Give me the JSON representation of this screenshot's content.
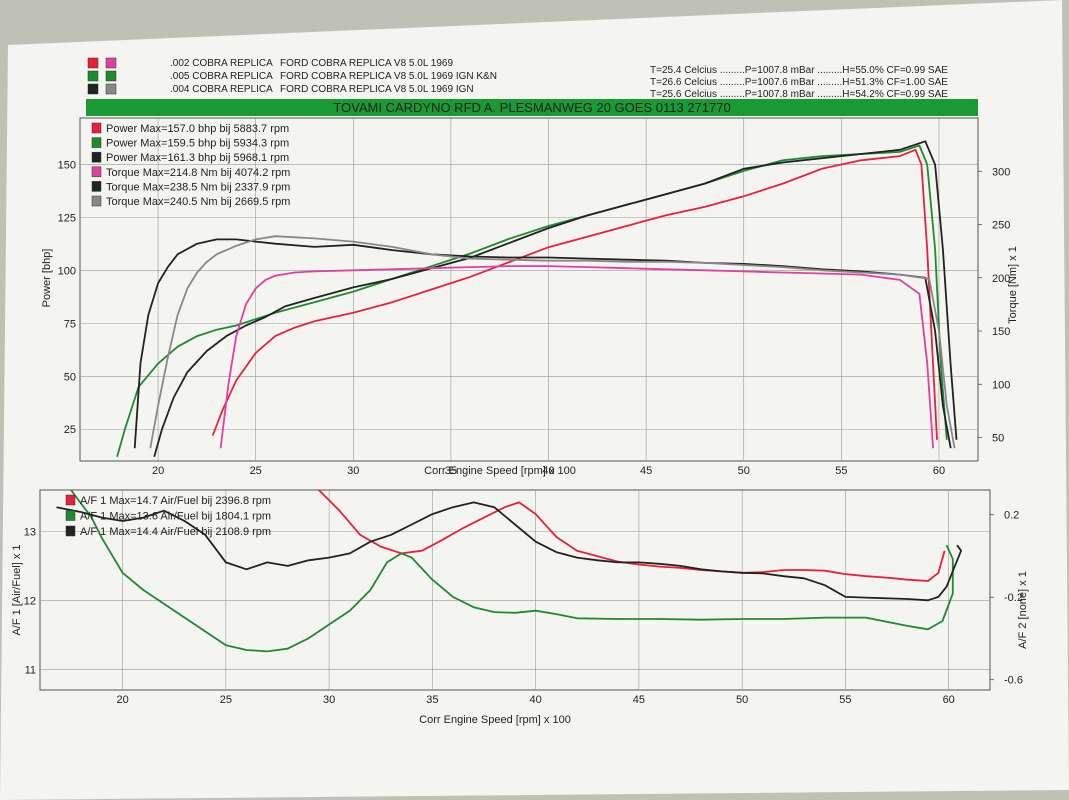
{
  "header": {
    "runs": [
      {
        "swatch": "#e8203a",
        "swatch2": "#e040a0",
        "id": ".002 COBRA REPLICA",
        "desc": "FORD COBRA REPLICA V8 5.0L 1969",
        "cond": "T=25.4 Celcius .........P=1007.8 mBar .........H=55.0% CF=0.99 SAE"
      },
      {
        "swatch": "#1f8a2e",
        "swatch2": "#1f8a2e",
        "id": ".005 COBRA REPLICA",
        "desc": "FORD COBRA REPLICA V8 5.0L 1969 IGN K&N",
        "cond": "T=26.6 Celcius .........P=1007.6 mBar .........H=51.3% CF=1.00 SAE"
      },
      {
        "swatch": "#222222",
        "swatch2": "#888888",
        "id": ".004 COBRA REPLICA",
        "desc": "FORD COBRA REPLICA V8 5.0L 1969 IGN",
        "cond": "T=25.6 Celcius .........P=1007.8 mBar .........H=54.2% CF=0.99 SAE"
      }
    ],
    "banner": "TOVAMI CARDYNO RFD  A. PLESMANWEG 20 GOES 0113 271770",
    "banner_color": "#1a9a35"
  },
  "chart_data": [
    {
      "type": "line",
      "xlabel": "Corr Engine Speed [rpm] x 100",
      "ylabel": "Power [bhp]",
      "y2label": "Torque [Nm] x 1",
      "xlim": [
        16,
        62
      ],
      "ylim": [
        10,
        172
      ],
      "y2lim": [
        28,
        350
      ],
      "xticks": [
        20,
        25,
        30,
        35,
        40,
        45,
        50,
        55,
        60
      ],
      "yticks": [
        25,
        50,
        75,
        100,
        125,
        150
      ],
      "y2ticks": [
        50,
        100,
        150,
        200,
        250,
        300
      ],
      "legend": [
        {
          "text": "Power Max=157.0 bhp bij 5883.7 rpm",
          "color": "#e8203a"
        },
        {
          "text": "Power Max=159.5 bhp bij 5934.3 rpm",
          "color": "#1f8a2e"
        },
        {
          "text": "Power Max=161.3 bhp bij 5968.1 rpm",
          "color": "#222222"
        },
        {
          "text": "Torque Max=214.8 Nm bij 4074.2 rpm",
          "color": "#e040a0"
        },
        {
          "text": "Torque Max=238.5 Nm bij 2337.9 rpm",
          "color": "#222222"
        },
        {
          "text": "Torque Max=240.5 Nm bij 2669.5 rpm",
          "color": "#888888"
        }
      ],
      "series": [
        {
          "kind": "power",
          "axis": "left",
          "color": "#e8203a",
          "x": [
            22.8,
            23.3,
            24,
            25,
            26,
            27,
            28,
            30,
            32,
            34,
            36,
            38,
            40,
            42,
            44,
            46,
            48,
            50,
            52,
            54,
            56,
            58,
            58.8,
            59.1,
            59.4,
            59.7,
            59.9
          ],
          "y": [
            22,
            34,
            48,
            61,
            69,
            73,
            76,
            80,
            85,
            91,
            97,
            104,
            111,
            116,
            121,
            126,
            130,
            135,
            141,
            148,
            152,
            154,
            157,
            150,
            110,
            55,
            20
          ]
        },
        {
          "kind": "power",
          "axis": "left",
          "color": "#1f8a2e",
          "x": [
            17.9,
            18.3,
            19,
            20,
            21,
            22,
            23,
            24,
            25,
            26,
            28,
            30,
            32,
            34,
            36,
            38,
            40,
            42,
            44,
            46,
            48,
            50,
            52,
            54,
            56,
            58,
            59,
            59.4,
            59.8,
            60.1,
            60.4
          ],
          "y": [
            12,
            25,
            45,
            56,
            64,
            69,
            72,
            74,
            77,
            80,
            85,
            90,
            96,
            102,
            108,
            115,
            121,
            126,
            131,
            136,
            141,
            147,
            152,
            154,
            155,
            156,
            159,
            150,
            110,
            55,
            20
          ]
        },
        {
          "kind": "power",
          "axis": "left",
          "color": "#222222",
          "x": [
            19.8,
            20.2,
            20.8,
            21.5,
            22.5,
            23.5,
            24.5,
            25.5,
            26.5,
            28,
            30,
            32,
            34,
            36,
            38,
            40,
            42,
            44,
            46,
            48,
            50,
            52,
            54,
            56,
            58,
            59.3,
            59.8,
            60.2,
            60.6,
            60.9
          ],
          "y": [
            12,
            25,
            40,
            52,
            62,
            69,
            74,
            78,
            83,
            87,
            92,
            96,
            101,
            106,
            113,
            120,
            126,
            131,
            136,
            141,
            148,
            151,
            153,
            155,
            157,
            161,
            150,
            110,
            55,
            20
          ]
        },
        {
          "kind": "torque",
          "axis": "right",
          "color": "#e040a0",
          "x": [
            23.2,
            23.6,
            24,
            24.5,
            25,
            25.5,
            26,
            27,
            28,
            30,
            32,
            34,
            36,
            38,
            40,
            42,
            44,
            46,
            48,
            50,
            52,
            54,
            56,
            58,
            59,
            59.4,
            59.7
          ],
          "y": [
            40,
            100,
            145,
            175,
            190,
            198,
            202,
            205,
            206,
            207,
            208,
            209,
            210,
            211,
            211,
            210,
            209,
            208,
            207,
            206,
            205,
            204,
            203,
            198,
            185,
            120,
            40
          ]
        },
        {
          "kind": "torque",
          "axis": "right",
          "color": "#222222",
          "x": [
            18.8,
            19.1,
            19.5,
            20,
            20.5,
            21,
            22,
            23,
            24,
            25,
            26,
            28,
            30,
            32,
            34,
            36,
            38,
            40,
            42,
            44,
            46,
            48,
            50,
            52,
            54,
            56,
            58,
            59.3,
            59.8,
            60.2,
            60.6
          ],
          "y": [
            40,
            120,
            165,
            195,
            210,
            222,
            232,
            236,
            236,
            234,
            232,
            229,
            231,
            226,
            222,
            220,
            219,
            219,
            218,
            217,
            216,
            214,
            213,
            211,
            208,
            206,
            203,
            200,
            150,
            80,
            40
          ]
        },
        {
          "kind": "torque",
          "axis": "right",
          "color": "#888888",
          "x": [
            19.6,
            20,
            20.5,
            21,
            21.5,
            22,
            22.5,
            23,
            24,
            25,
            26,
            28,
            30,
            32,
            34,
            36,
            38,
            40,
            42,
            44,
            46,
            48,
            50,
            52,
            54,
            56,
            58,
            59.5,
            60,
            60.4,
            60.8
          ],
          "y": [
            40,
            80,
            125,
            165,
            190,
            205,
            215,
            222,
            230,
            236,
            239,
            237,
            234,
            229,
            222,
            218,
            217,
            216,
            216,
            215,
            215,
            214,
            212,
            210,
            207,
            205,
            203,
            199,
            150,
            80,
            40
          ]
        }
      ]
    },
    {
      "type": "line",
      "xlabel": "Corr Engine Speed [rpm] x 100",
      "ylabel": "A/F 1 [Air/Fuel] x 1",
      "y2label": "A/F 2 [none] x 1",
      "xlim": [
        16,
        62
      ],
      "ylim": [
        10.7,
        13.6
      ],
      "y2lim": [
        -0.65,
        0.32
      ],
      "xticks": [
        20,
        25,
        30,
        35,
        40,
        45,
        50,
        55,
        60
      ],
      "yticks": [
        11,
        12,
        13
      ],
      "y2ticks": [
        0.2,
        -0.2,
        -0.6
      ],
      "y2ticklabels": [
        "0.2",
        "-0.2",
        "-0.6"
      ],
      "legend": [
        {
          "text": "A/F 1  Max=14.7 Air/Fuel bij 2396.8 rpm",
          "color": "#e8203a"
        },
        {
          "text": "A/F 1  Max=13.6 Air/Fuel bij 1804.1 rpm",
          "color": "#1f8a2e"
        },
        {
          "text": "A/F 1  Max=14.4 Air/Fuel bij 2108.9 rpm",
          "color": "#222222"
        }
      ],
      "series": [
        {
          "color": "#e8203a",
          "x": [
            29.5,
            30.5,
            31.5,
            32.5,
            33.5,
            34.5,
            35.5,
            36.5,
            37.5,
            38.5,
            39.2,
            40,
            41,
            42,
            43,
            44,
            45,
            46,
            47,
            48,
            49,
            50,
            51,
            52,
            53,
            54,
            55,
            56,
            57,
            58,
            59,
            59.5,
            59.8
          ],
          "y": [
            13.6,
            13.3,
            12.95,
            12.78,
            12.68,
            12.72,
            12.88,
            13.05,
            13.2,
            13.35,
            13.42,
            13.25,
            12.92,
            12.72,
            12.64,
            12.56,
            12.52,
            12.49,
            12.47,
            12.44,
            12.42,
            12.4,
            12.41,
            12.44,
            12.44,
            12.43,
            12.38,
            12.35,
            12.33,
            12.3,
            12.28,
            12.4,
            12.72
          ]
        },
        {
          "color": "#1f8a2e",
          "x": [
            17.5,
            18.5,
            19,
            20,
            21,
            22,
            23,
            24,
            25,
            26,
            27,
            28,
            29,
            30,
            31,
            32,
            32.8,
            33.5,
            34,
            35,
            36,
            37,
            38,
            39,
            40,
            41,
            42,
            44,
            46,
            48,
            50,
            52,
            54,
            56,
            58,
            59,
            59.7,
            60.2,
            60.2,
            59.9
          ],
          "y": [
            13.6,
            13.2,
            12.9,
            12.4,
            12.15,
            11.95,
            11.75,
            11.55,
            11.35,
            11.28,
            11.26,
            11.3,
            11.45,
            11.65,
            11.85,
            12.15,
            12.55,
            12.68,
            12.62,
            12.3,
            12.05,
            11.9,
            11.83,
            11.82,
            11.85,
            11.8,
            11.74,
            11.73,
            11.73,
            11.72,
            11.73,
            11.73,
            11.75,
            11.75,
            11.63,
            11.58,
            11.7,
            12.1,
            12.6,
            12.8
          ]
        },
        {
          "color": "#222222",
          "x": [
            16.8,
            18,
            19,
            20,
            21,
            22,
            23,
            24,
            25,
            26,
            27,
            28,
            29,
            30,
            31,
            32,
            33,
            34,
            35,
            36,
            37,
            38,
            39,
            40,
            41,
            42,
            43,
            44,
            45,
            46,
            47,
            48,
            49,
            50,
            51,
            52,
            53,
            54,
            55,
            56,
            57,
            58,
            59,
            59.5,
            59.9,
            60.3,
            60.6,
            60.4
          ],
          "y": [
            13.35,
            13.28,
            13.2,
            13.15,
            13.2,
            13.3,
            13.15,
            12.95,
            12.55,
            12.45,
            12.55,
            12.5,
            12.58,
            12.62,
            12.68,
            12.85,
            12.95,
            13.1,
            13.25,
            13.35,
            13.42,
            13.35,
            13.1,
            12.85,
            12.7,
            12.62,
            12.58,
            12.55,
            12.55,
            12.53,
            12.5,
            12.45,
            12.42,
            12.4,
            12.39,
            12.35,
            12.32,
            12.22,
            12.05,
            12.04,
            12.03,
            12.02,
            12.0,
            12.05,
            12.2,
            12.5,
            12.72,
            12.8
          ]
        }
      ]
    }
  ]
}
